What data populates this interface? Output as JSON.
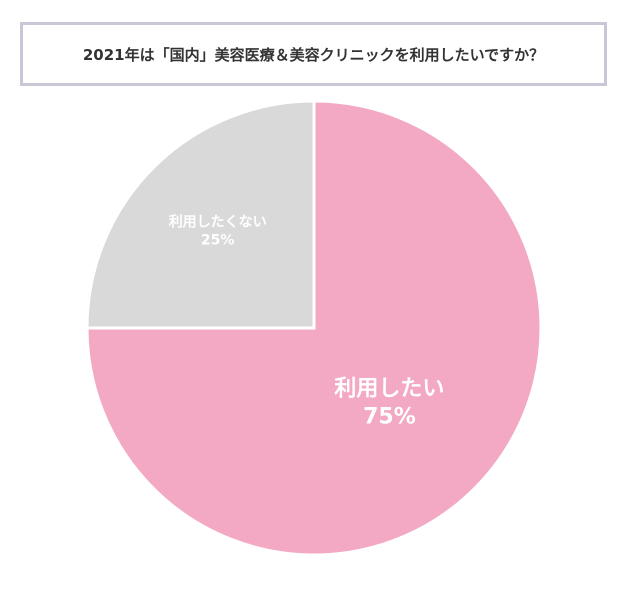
{
  "chart_data": {
    "type": "pie",
    "title": "2021年は「国内」美容医療＆美容クリニックを利用したいですか？",
    "categories": [
      "利用したい",
      "利用したくない"
    ],
    "values": [
      75,
      25
    ],
    "value_labels": [
      "75%",
      "25%"
    ],
    "colors": [
      "#f3a8c3",
      "#d9d9d9"
    ]
  }
}
